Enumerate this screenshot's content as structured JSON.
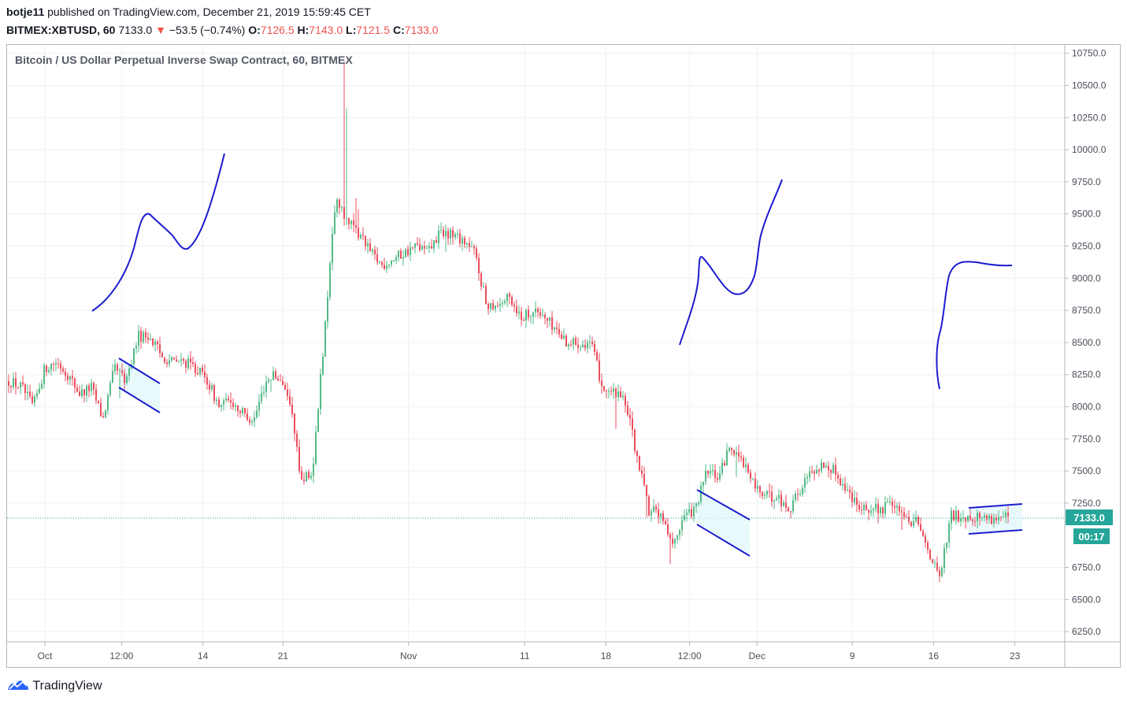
{
  "header": {
    "user": "botje11",
    "published": "published on TradingView.com, December 21, 2019 15:59:45 CET",
    "symbol": "BITMEX:XBTUSD, 60",
    "last": "7133.0",
    "arrow": "▼",
    "change": "−53.5 (−0.74%)",
    "o_label": "O:",
    "o_value": "7126.5",
    "h_label": "H:",
    "h_value": "7143.0",
    "l_label": "L:",
    "l_value": "7121.5",
    "c_label": "C:",
    "c_value": "7133.0"
  },
  "chart_title": "Bitcoin / US Dollar Perpetual Inverse Swap Contract, 60, BITMEX",
  "price_tag": "7133.0",
  "countdown_tag": "00:17",
  "footer": {
    "brand": "TradingView",
    "icon": "tradingview-logo-icon"
  },
  "colors": {
    "up": "#53b987",
    "down": "#eb4d5c",
    "drawing": "#1c1ccf",
    "channel_fill": "#e0f7fa",
    "grid": "#eef0f3",
    "price_tag_bg": "#26a69a",
    "countdown_bg": "#26a69a",
    "current_line": "#26a69a"
  },
  "chart_data": {
    "type": "candlestick",
    "title": "Bitcoin / US Dollar Perpetual Inverse Swap Contract, 60, BITMEX",
    "y_ticks": [
      "10750.0",
      "10500.0",
      "10250.0",
      "10000.0",
      "9750.0",
      "9500.0",
      "9250.0",
      "9000.0",
      "8750.0",
      "8500.0",
      "8250.0",
      "8000.0",
      "7750.0",
      "7500.0",
      "7250.0",
      "6750.0",
      "6500.0",
      "6250.0"
    ],
    "ylim": [
      6150,
      10850
    ],
    "x_ticks": [
      "Oct",
      "12:00",
      "14",
      "21",
      "Nov",
      "11",
      "18",
      "12:00",
      "Dec",
      "9",
      "16",
      "23"
    ],
    "current_price": 7133.0,
    "close_path": [
      {
        "x": "Sep 28",
        "y": 8200
      },
      {
        "x": "Sep 29",
        "y": 8150
      },
      {
        "x": "Sep 30",
        "y": 8000
      },
      {
        "x": "Oct 1",
        "y": 8300
      },
      {
        "x": "Oct 2",
        "y": 8350
      },
      {
        "x": "Oct 3",
        "y": 8250
      },
      {
        "x": "Oct 4",
        "y": 8100
      },
      {
        "x": "Oct 5",
        "y": 8150
      },
      {
        "x": "Oct 6",
        "y": 7900
      },
      {
        "x": "Oct 7",
        "y": 8300
      },
      {
        "x": "Oct 8",
        "y": 8200
      },
      {
        "x": "Oct 9",
        "y": 8550
      },
      {
        "x": "Oct 10",
        "y": 8550
      },
      {
        "x": "Oct 11",
        "y": 8400
      },
      {
        "x": "Oct 12",
        "y": 8350
      },
      {
        "x": "Oct 13",
        "y": 8350
      },
      {
        "x": "Oct 14",
        "y": 8300
      },
      {
        "x": "Oct 15",
        "y": 8200
      },
      {
        "x": "Oct 16",
        "y": 8000
      },
      {
        "x": "Oct 17",
        "y": 8050
      },
      {
        "x": "Oct 18",
        "y": 7950
      },
      {
        "x": "Oct 19",
        "y": 7900
      },
      {
        "x": "Oct 20",
        "y": 8200
      },
      {
        "x": "Oct 21",
        "y": 8250
      },
      {
        "x": "Oct 22",
        "y": 8100
      },
      {
        "x": "Oct 23",
        "y": 7450
      },
      {
        "x": "Oct 24",
        "y": 7450
      },
      {
        "x": "Oct 25",
        "y": 8500
      },
      {
        "x": "Oct 26",
        "y": 9600
      },
      {
        "x": "Oct 27",
        "y": 9450
      },
      {
        "x": "Oct 28",
        "y": 9350
      },
      {
        "x": "Oct 29",
        "y": 9200
      },
      {
        "x": "Oct 30",
        "y": 9100
      },
      {
        "x": "Oct 31",
        "y": 9150
      },
      {
        "x": "Nov 1",
        "y": 9200
      },
      {
        "x": "Nov 2",
        "y": 9250
      },
      {
        "x": "Nov 3",
        "y": 9200
      },
      {
        "x": "Nov 4",
        "y": 9350
      },
      {
        "x": "Nov 5",
        "y": 9350
      },
      {
        "x": "Nov 6",
        "y": 9300
      },
      {
        "x": "Nov 7",
        "y": 9200
      },
      {
        "x": "Nov 8",
        "y": 8800
      },
      {
        "x": "Nov 9",
        "y": 8800
      },
      {
        "x": "Nov 10",
        "y": 8850
      },
      {
        "x": "Nov 11",
        "y": 8700
      },
      {
        "x": "Nov 12",
        "y": 8750
      },
      {
        "x": "Nov 13",
        "y": 8700
      },
      {
        "x": "Nov 14",
        "y": 8600
      },
      {
        "x": "Nov 15",
        "y": 8500
      },
      {
        "x": "Nov 16",
        "y": 8500
      },
      {
        "x": "Nov 17",
        "y": 8500
      },
      {
        "x": "Nov 18",
        "y": 8150
      },
      {
        "x": "Nov 19",
        "y": 8100
      },
      {
        "x": "Nov 20",
        "y": 8050
      },
      {
        "x": "Nov 21",
        "y": 7600
      },
      {
        "x": "Nov 22",
        "y": 7200
      },
      {
        "x": "Nov 23",
        "y": 7150
      },
      {
        "x": "Nov 24",
        "y": 6900
      },
      {
        "x": "Nov 25",
        "y": 7150
      },
      {
        "x": "Nov 26",
        "y": 7200
      },
      {
        "x": "Nov 27",
        "y": 7500
      },
      {
        "x": "Nov 28",
        "y": 7450
      },
      {
        "x": "Nov 29",
        "y": 7700
      },
      {
        "x": "Nov 30",
        "y": 7600
      },
      {
        "x": "Dec 1",
        "y": 7400
      },
      {
        "x": "Dec 2",
        "y": 7300
      },
      {
        "x": "Dec 3",
        "y": 7300
      },
      {
        "x": "Dec 4",
        "y": 7200
      },
      {
        "x": "Dec 5",
        "y": 7350
      },
      {
        "x": "Dec 6",
        "y": 7500
      },
      {
        "x": "Dec 7",
        "y": 7550
      },
      {
        "x": "Dec 8",
        "y": 7500
      },
      {
        "x": "Dec 9",
        "y": 7350
      },
      {
        "x": "Dec 10",
        "y": 7250
      },
      {
        "x": "Dec 11",
        "y": 7200
      },
      {
        "x": "Dec 12",
        "y": 7200
      },
      {
        "x": "Dec 13",
        "y": 7250
      },
      {
        "x": "Dec 14",
        "y": 7100
      },
      {
        "x": "Dec 15",
        "y": 7100
      },
      {
        "x": "Dec 16",
        "y": 6900
      },
      {
        "x": "Dec 17",
        "y": 6650
      },
      {
        "x": "Dec 18",
        "y": 7150
      },
      {
        "x": "Dec 19",
        "y": 7150
      },
      {
        "x": "Dec 20",
        "y": 7150
      },
      {
        "x": "Dec 21",
        "y": 7133
      }
    ]
  }
}
